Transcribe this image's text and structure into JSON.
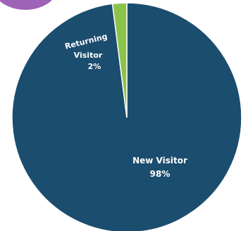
{
  "chart_data": {
    "type": "pie",
    "slices": [
      {
        "label": "New Visitor",
        "percent_label": "98%",
        "value": 98,
        "color": "#1b4d6e"
      },
      {
        "label": "Returning Visitor",
        "label_lines": [
          "Returning",
          "Visitor"
        ],
        "percent_label": "2%",
        "value": 2,
        "color": "#8bc34a"
      }
    ],
    "decoration_color": "#9e62b6",
    "border_color": "#ffffff"
  }
}
